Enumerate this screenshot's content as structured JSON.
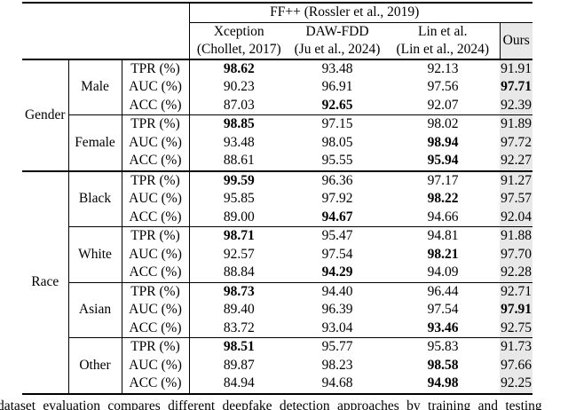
{
  "table": {
    "top_header": {
      "dataset_group": "FF++ (Rossler et al., 2019)",
      "ours": "Ours"
    },
    "methods": [
      {
        "line1": "Xception",
        "line2": "(Chollet, 2017)"
      },
      {
        "line1": "DAW-FDD",
        "line2": "(Ju et al., 2024)"
      },
      {
        "line1": "Lin et al.",
        "line2": "(Lin et al., 2024)"
      }
    ],
    "groups": [
      {
        "label": "Gender",
        "subgroups": [
          {
            "label": "Male",
            "rows": [
              {
                "metric": "TPR (%)",
                "values": [
                  "98.62",
                  "93.48",
                  "92.13",
                  "91.91"
                ],
                "bold_index": 0
              },
              {
                "metric": "AUC (%)",
                "values": [
                  "90.23",
                  "96.91",
                  "97.56",
                  "97.71"
                ],
                "bold_index": 3
              },
              {
                "metric": "ACC (%)",
                "values": [
                  "87.03",
                  "92.65",
                  "92.07",
                  "92.39"
                ],
                "bold_index": 1
              }
            ]
          },
          {
            "label": "Female",
            "rows": [
              {
                "metric": "TPR (%)",
                "values": [
                  "98.85",
                  "97.15",
                  "98.02",
                  "91.89"
                ],
                "bold_index": 0
              },
              {
                "metric": "AUC (%)",
                "values": [
                  "93.48",
                  "98.05",
                  "98.94",
                  "97.72"
                ],
                "bold_index": 2
              },
              {
                "metric": "ACC (%)",
                "values": [
                  "88.61",
                  "95.55",
                  "95.94",
                  "92.27"
                ],
                "bold_index": 2
              }
            ]
          }
        ]
      },
      {
        "label": "Race",
        "subgroups": [
          {
            "label": "Black",
            "rows": [
              {
                "metric": "TPR (%)",
                "values": [
                  "99.59",
                  "96.36",
                  "97.17",
                  "91.27"
                ],
                "bold_index": 0
              },
              {
                "metric": "AUC (%)",
                "values": [
                  "95.85",
                  "97.92",
                  "98.22",
                  "97.57"
                ],
                "bold_index": 2
              },
              {
                "metric": "ACC (%)",
                "values": [
                  "89.00",
                  "94.67",
                  "94.66",
                  "92.04"
                ],
                "bold_index": 1
              }
            ]
          },
          {
            "label": "White",
            "rows": [
              {
                "metric": "TPR (%)",
                "values": [
                  "98.71",
                  "95.47",
                  "94.81",
                  "91.88"
                ],
                "bold_index": 0
              },
              {
                "metric": "AUC (%)",
                "values": [
                  "92.57",
                  "97.54",
                  "98.21",
                  "97.70"
                ],
                "bold_index": 2
              },
              {
                "metric": "ACC (%)",
                "values": [
                  "88.84",
                  "94.29",
                  "94.09",
                  "92.28"
                ],
                "bold_index": 1
              }
            ]
          },
          {
            "label": "Asian",
            "rows": [
              {
                "metric": "TPR (%)",
                "values": [
                  "98.73",
                  "94.40",
                  "96.44",
                  "92.71"
                ],
                "bold_index": 0
              },
              {
                "metric": "AUC (%)",
                "values": [
                  "89.40",
                  "96.39",
                  "97.54",
                  "97.91"
                ],
                "bold_index": 3
              },
              {
                "metric": "ACC (%)",
                "values": [
                  "83.72",
                  "93.04",
                  "93.46",
                  "92.75"
                ],
                "bold_index": 2
              }
            ]
          },
          {
            "label": "Other",
            "rows": [
              {
                "metric": "TPR (%)",
                "values": [
                  "98.51",
                  "95.77",
                  "95.83",
                  "91.73"
                ],
                "bold_index": 0
              },
              {
                "metric": "AUC (%)",
                "values": [
                  "89.87",
                  "98.23",
                  "98.58",
                  "97.66"
                ],
                "bold_index": 2
              },
              {
                "metric": "ACC (%)",
                "values": [
                  "84.94",
                  "94.68",
                  "94.98",
                  "92.25"
                ],
                "bold_index": 2
              }
            ]
          }
        ]
      }
    ]
  },
  "caption": "dataset evaluation compares different deepfake detection approaches by training and testing",
  "colors": {
    "ours_column_bg": "#e8e8e8",
    "rule": "#000000",
    "text": "#000000",
    "page_bg": "#ffffff"
  }
}
